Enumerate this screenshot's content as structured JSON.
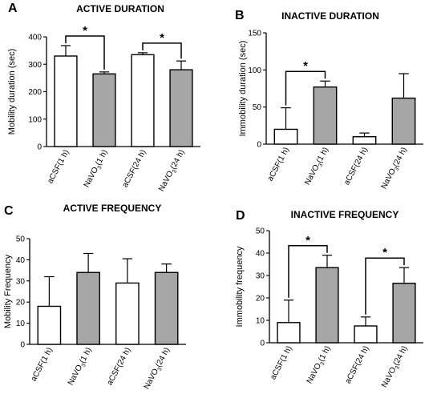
{
  "chart_data": [
    {
      "type": "bar",
      "panel_letter": "A",
      "title": "ACTIVE DURATION",
      "ylabel": "Mobility duration (sec)",
      "ylim": [
        0,
        400
      ],
      "yticks": [
        0,
        100,
        200,
        300,
        400
      ],
      "categories": [
        {
          "base": "aCSF",
          "sub": "",
          "suffix": "(1 h)"
        },
        {
          "base": "NaVO",
          "sub": "3",
          "suffix": "(1 h)"
        },
        {
          "base": "aCSF",
          "sub": "",
          "suffix": "(24 h)"
        },
        {
          "base": "NaVO",
          "sub": "3",
          "suffix": "(24 h)"
        }
      ],
      "values": [
        330,
        265,
        335,
        280
      ],
      "errors": [
        38,
        7,
        7,
        32
      ],
      "fills": [
        "white",
        "gray",
        "white",
        "gray"
      ],
      "significance": [
        {
          "from": 0,
          "to": 1,
          "label": "*"
        },
        {
          "from": 2,
          "to": 3,
          "label": "*"
        }
      ]
    },
    {
      "type": "bar",
      "panel_letter": "B",
      "title": "INACTIVE DURATION",
      "ylabel": "Immobility duration (sec)",
      "ylim": [
        0,
        150
      ],
      "yticks": [
        0,
        50,
        100,
        150
      ],
      "categories": [
        {
          "base": "aCSF",
          "sub": "",
          "suffix": "(1 h)"
        },
        {
          "base": "NaVO",
          "sub": "3",
          "suffix": "(1 h)"
        },
        {
          "base": "aCSF",
          "sub": "",
          "suffix": "(24 h)"
        },
        {
          "base": "NaVO",
          "sub": "3",
          "suffix": "(24 h)"
        }
      ],
      "values": [
        20,
        77,
        10,
        62
      ],
      "errors": [
        29,
        8,
        5,
        33
      ],
      "fills": [
        "white",
        "gray",
        "white",
        "gray"
      ],
      "significance": [
        {
          "from": 0,
          "to": 1,
          "label": "*"
        }
      ]
    },
    {
      "type": "bar",
      "panel_letter": "C",
      "title": "ACTIVE FREQUENCY",
      "ylabel": "Mobility Frequency",
      "ylim": [
        0,
        50
      ],
      "yticks": [
        0,
        10,
        20,
        30,
        40,
        50
      ],
      "categories": [
        {
          "base": "aCSF",
          "sub": "",
          "suffix": "(1 h)"
        },
        {
          "base": "NaVO",
          "sub": "3",
          "suffix": "(1 h)"
        },
        {
          "base": "aCSF",
          "sub": "",
          "suffix": "(24 h)"
        },
        {
          "base": "NaVO",
          "sub": "3",
          "suffix": "(24 h)"
        }
      ],
      "values": [
        18,
        34,
        29,
        34
      ],
      "errors": [
        14,
        9,
        11.5,
        4
      ],
      "fills": [
        "white",
        "gray",
        "white",
        "gray"
      ],
      "significance": []
    },
    {
      "type": "bar",
      "panel_letter": "D",
      "title": "INACTIVE FREQUENCY",
      "ylabel": "Immobility frequency",
      "ylim": [
        0,
        50
      ],
      "yticks": [
        0,
        10,
        20,
        30,
        40,
        50
      ],
      "categories": [
        {
          "base": "aCSF",
          "sub": "",
          "suffix": "(1 h)"
        },
        {
          "base": "NaVO",
          "sub": "3",
          "suffix": "(1 h)"
        },
        {
          "base": "aCSF",
          "sub": "",
          "suffix": "(24 h)"
        },
        {
          "base": "NaVO",
          "sub": "3",
          "suffix": "(24 h)"
        }
      ],
      "values": [
        9,
        33.5,
        7.5,
        26.5
      ],
      "errors": [
        10,
        5.5,
        4,
        7
      ],
      "fills": [
        "white",
        "gray",
        "white",
        "gray"
      ],
      "significance": [
        {
          "from": 0,
          "to": 1,
          "label": "*"
        },
        {
          "from": 2,
          "to": 3,
          "label": "*"
        }
      ]
    }
  ],
  "colors": {
    "bar_gray": "#a6a6a6",
    "bar_white": "#ffffff",
    "ink": "#000000"
  }
}
